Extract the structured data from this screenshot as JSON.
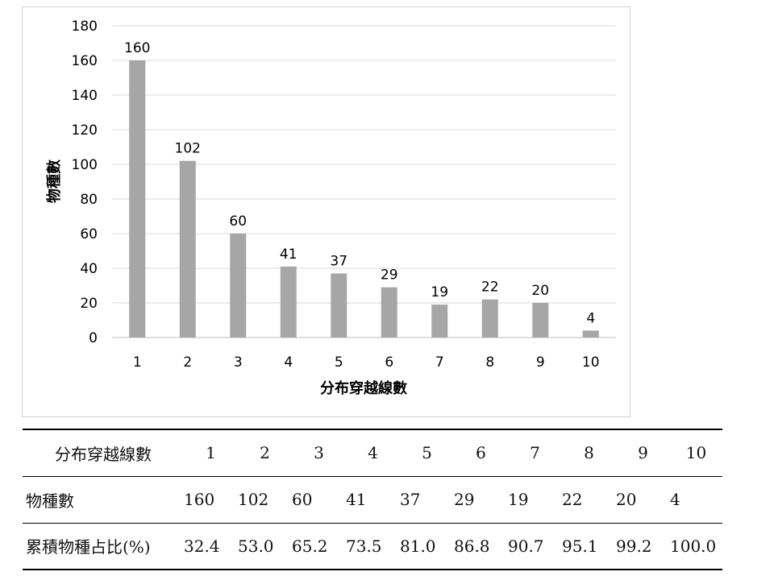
{
  "chart_data": {
    "type": "bar",
    "title": "",
    "xlabel": "分布穿越線數",
    "ylabel": "物種數",
    "categories": [
      "1",
      "2",
      "3",
      "4",
      "5",
      "6",
      "7",
      "8",
      "9",
      "10"
    ],
    "values": [
      160,
      102,
      60,
      41,
      37,
      29,
      19,
      22,
      20,
      4
    ],
    "ylim": [
      0,
      180
    ],
    "yticks": [
      0,
      20,
      40,
      60,
      80,
      100,
      120,
      140,
      160,
      180
    ],
    "grid": true,
    "legend": "none",
    "bar_color": "#a6a6a6",
    "grid_color": "#d9d9d9"
  },
  "table": {
    "rows": [
      {
        "header": "分布穿越線數",
        "cells": [
          "1",
          "2",
          "3",
          "4",
          "5",
          "6",
          "7",
          "8",
          "9",
          "10"
        ]
      },
      {
        "header": "物種數",
        "cells": [
          "160",
          "102",
          "60",
          "41",
          "37",
          "29",
          "19",
          "22",
          "20",
          "4"
        ]
      },
      {
        "header": "累積物種占比(%)",
        "cells": [
          "32.4",
          "53.0",
          "65.2",
          "73.5",
          "81.0",
          "86.8",
          "90.7",
          "95.1",
          "99.2",
          "100.0"
        ]
      }
    ]
  }
}
